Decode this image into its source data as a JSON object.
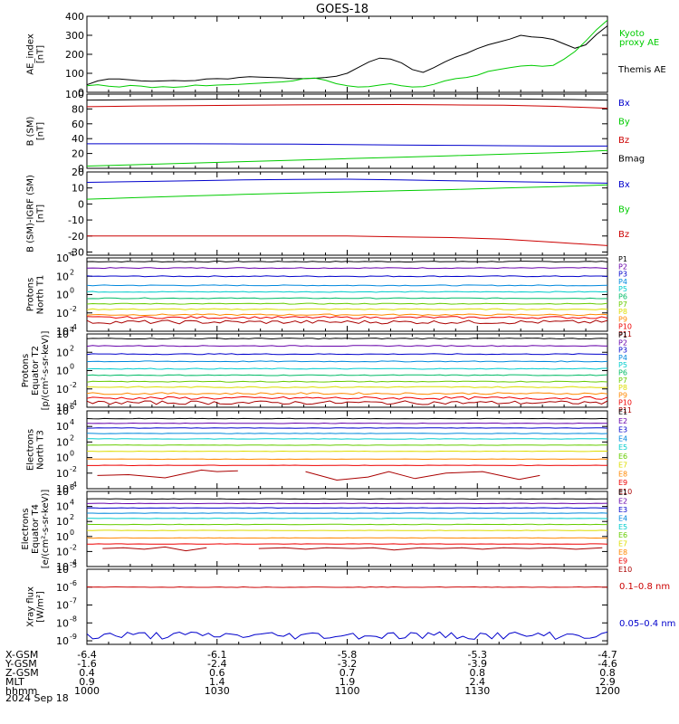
{
  "title": "GOES-18",
  "date_label": "2024 Sep 18",
  "ephemeris": {
    "rows": [
      {
        "label": "X-GSM",
        "values": [
          "-6.4",
          "-6.1",
          "-5.8",
          "-5.3",
          "-4.7"
        ]
      },
      {
        "label": "Y-GSM",
        "values": [
          "-1.6",
          "-2.4",
          "-3.2",
          "-3.9",
          "-4.6"
        ]
      },
      {
        "label": "Z-GSM",
        "values": [
          "0.4",
          "0.6",
          "0.7",
          "0.8",
          "0.8"
        ]
      },
      {
        "label": "MLT",
        "values": [
          "0.9",
          "1.4",
          "1.9",
          "2.4",
          "2.9"
        ]
      },
      {
        "label": "hhmm",
        "values": [
          "1000",
          "1030",
          "1100",
          "1130",
          "1200"
        ]
      }
    ]
  },
  "chart_data": [
    {
      "type": "line",
      "ylabel_lines": [
        "AE_index",
        "[nT]"
      ],
      "ylim": [
        0,
        400
      ],
      "yticks": [
        "0",
        "100",
        "200",
        "300",
        "400"
      ],
      "legend": [
        {
          "text": "Kyoto",
          "color": "#00cc00"
        },
        {
          "text": "proxy AE",
          "color": "#00cc00"
        },
        {
          "text": "Themis AE",
          "color": "#000000"
        }
      ],
      "series": [
        {
          "color": "#000000",
          "values": [
            40,
            60,
            70,
            70,
            65,
            60,
            58,
            60,
            62,
            60,
            62,
            70,
            72,
            70,
            78,
            82,
            80,
            78,
            76,
            72,
            72,
            74,
            78,
            85,
            100,
            130,
            160,
            180,
            175,
            155,
            120,
            105,
            130,
            160,
            185,
            205,
            230,
            250,
            265,
            280,
            300,
            292,
            288,
            278,
            255,
            232,
            250,
            305,
            350
          ]
        },
        {
          "color": "#00cc00",
          "values": [
            35,
            40,
            32,
            28,
            36,
            33,
            25,
            30,
            26,
            30,
            38,
            35,
            38,
            40,
            42,
            45,
            48,
            52,
            55,
            60,
            72,
            75,
            64,
            45,
            35,
            28,
            30,
            38,
            45,
            35,
            28,
            30,
            42,
            60,
            72,
            78,
            90,
            110,
            120,
            130,
            138,
            142,
            137,
            142,
            175,
            215,
            270,
            330,
            380
          ]
        }
      ]
    },
    {
      "type": "line",
      "ylabel_lines": [
        "B (SM)",
        "[nT]"
      ],
      "ylim": [
        0,
        100
      ],
      "yticks": [
        "0",
        "20",
        "40",
        "60",
        "80",
        "100"
      ],
      "legend": [
        {
          "text": "Bx",
          "color": "#0000cc"
        },
        {
          "text": "By",
          "color": "#00cc00"
        },
        {
          "text": "Bz",
          "color": "#cc0000"
        },
        {
          "text": "Bmag",
          "color": "#000000"
        }
      ],
      "series": [
        {
          "color": "#000000",
          "values": [
            92,
            92.5,
            93,
            93.3,
            93.5,
            93.7,
            94,
            94,
            93.5,
            93,
            92
          ]
        },
        {
          "color": "#cc0000",
          "values": [
            83,
            84,
            84.5,
            85,
            85.5,
            85.8,
            86,
            85.5,
            85,
            83.5,
            81
          ]
        },
        {
          "color": "#0000cc",
          "values": [
            33,
            33,
            33,
            32.8,
            32.5,
            32,
            31.5,
            31,
            30.5,
            30,
            30
          ]
        },
        {
          "color": "#00cc00",
          "values": [
            3,
            5,
            7,
            9,
            11,
            13,
            15,
            17,
            19,
            21,
            24
          ]
        }
      ]
    },
    {
      "type": "line",
      "ylabel_lines": [
        "B (SM)-IGRF (SM)",
        "[nT]"
      ],
      "ylim": [
        -32,
        20
      ],
      "yticks": [
        "-30",
        "-20",
        "-10",
        "0",
        "10",
        "20"
      ],
      "yticks_values": [
        -30,
        -20,
        -10,
        0,
        10,
        20
      ],
      "legend": [
        {
          "text": "Bx",
          "color": "#0000cc"
        },
        {
          "text": "By",
          "color": "#00cc00"
        },
        {
          "text": "Bz",
          "color": "#cc0000"
        }
      ],
      "series": [
        {
          "color": "#0000cc",
          "values": [
            13.5,
            14,
            14.5,
            15,
            15.3,
            15.5,
            15,
            14.5,
            14,
            13.5,
            13
          ]
        },
        {
          "color": "#00cc00",
          "values": [
            3,
            4,
            5,
            6,
            6.8,
            7.5,
            8.3,
            9,
            10,
            10.8,
            12
          ]
        },
        {
          "color": "#cc0000",
          "values": [
            -20,
            -20,
            -20,
            -20,
            -20,
            -20,
            -20.5,
            -21,
            -22,
            -24,
            -26
          ]
        }
      ]
    },
    {
      "type": "line",
      "log_scale": true,
      "ylabel_lines": [
        "Protons",
        "North T1"
      ],
      "ylim_exp": [
        -4,
        4
      ],
      "yticks_exp": [
        -4,
        -2,
        0,
        2,
        4
      ],
      "legend": [
        {
          "text": "P1",
          "color": "#000000"
        },
        {
          "text": "P2",
          "color": "#6600aa"
        },
        {
          "text": "P3",
          "color": "#0000cc"
        },
        {
          "text": "P4",
          "color": "#0088dd"
        },
        {
          "text": "P5",
          "color": "#00cccc"
        },
        {
          "text": "P6",
          "color": "#00bb66"
        },
        {
          "text": "P7",
          "color": "#66cc00"
        },
        {
          "text": "P8",
          "color": "#dddd00"
        },
        {
          "text": "P9",
          "color": "#ff8800"
        },
        {
          "text": "P10",
          "color": "#ee0000"
        },
        {
          "text": "P11",
          "color": "#aa0000"
        }
      ],
      "series": [
        {
          "color": "#000000",
          "level": 3.6,
          "noise": 0.05
        },
        {
          "color": "#6600aa",
          "level": 2.9,
          "noise": 0.05
        },
        {
          "color": "#0000cc",
          "level": 2.0,
          "noise": 0.05
        },
        {
          "color": "#0088dd",
          "level": 1.0,
          "noise": 0.05
        },
        {
          "color": "#00cccc",
          "level": 0.3,
          "noise": 0.05
        },
        {
          "color": "#00bb66",
          "level": -0.4,
          "noise": 0.05
        },
        {
          "color": "#66cc00",
          "level": -1.0,
          "noise": 0.05
        },
        {
          "color": "#dddd00",
          "level": -1.6,
          "noise": 0.06
        },
        {
          "color": "#ff8800",
          "level": -2.2,
          "noise": 0.08
        },
        {
          "color": "#ee0000",
          "level": -2.5,
          "noise": 0.12
        },
        {
          "color": "#aa0000",
          "level": -3.0,
          "noise": 0.2
        }
      ]
    },
    {
      "type": "line",
      "log_scale": true,
      "ylabel_lines": [
        "Protons",
        "Equator T2",
        "[p/(cm²-s-sr-keV)]"
      ],
      "ylim_exp": [
        -4,
        4
      ],
      "yticks_exp": [
        -4,
        -2,
        0,
        2,
        4
      ],
      "legend": [
        {
          "text": "P1",
          "color": "#000000"
        },
        {
          "text": "P2",
          "color": "#6600aa"
        },
        {
          "text": "P3",
          "color": "#0000cc"
        },
        {
          "text": "P4",
          "color": "#0088dd"
        },
        {
          "text": "P5",
          "color": "#00cccc"
        },
        {
          "text": "P6",
          "color": "#00bb66"
        },
        {
          "text": "P7",
          "color": "#66cc00"
        },
        {
          "text": "P8",
          "color": "#dddd00"
        },
        {
          "text": "P9",
          "color": "#ff8800"
        },
        {
          "text": "P10",
          "color": "#ee0000"
        },
        {
          "text": "P11",
          "color": "#aa0000"
        }
      ],
      "series": [
        {
          "color": "#000000",
          "level": 3.5,
          "noise": 0.05
        },
        {
          "color": "#6600aa",
          "level": 2.7,
          "noise": 0.05
        },
        {
          "color": "#0000cc",
          "level": 1.8,
          "noise": 0.05
        },
        {
          "color": "#0088dd",
          "level": 1.0,
          "noise": 0.05
        },
        {
          "color": "#00cccc",
          "level": 0.2,
          "noise": 0.05
        },
        {
          "color": "#00bb66",
          "level": -0.5,
          "noise": 0.05
        },
        {
          "color": "#66cc00",
          "level": -1.2,
          "noise": 0.05
        },
        {
          "color": "#dddd00",
          "level": -1.8,
          "noise": 0.07
        },
        {
          "color": "#ff8800",
          "level": -2.5,
          "noise": 0.1
        },
        {
          "color": "#ee0000",
          "level": -3.0,
          "noise": 0.15
        },
        {
          "color": "#aa0000",
          "level": -3.5,
          "noise": 0.2
        }
      ]
    },
    {
      "type": "line",
      "log_scale": true,
      "ylabel_lines": [
        "Electrons",
        "North T3"
      ],
      "ylim_exp": [
        -4,
        6
      ],
      "yticks_exp": [
        -4,
        -2,
        0,
        2,
        4,
        6
      ],
      "legend": [
        {
          "text": "E1",
          "color": "#000000"
        },
        {
          "text": "E2",
          "color": "#6600aa"
        },
        {
          "text": "E3",
          "color": "#0000cc"
        },
        {
          "text": "E4",
          "color": "#0088dd"
        },
        {
          "text": "E5",
          "color": "#00cccc"
        },
        {
          "text": "E6",
          "color": "#66cc00"
        },
        {
          "text": "E7",
          "color": "#dddd00"
        },
        {
          "text": "E8",
          "color": "#ff8800"
        },
        {
          "text": "E9",
          "color": "#ee0000"
        },
        {
          "text": "E10",
          "color": "#aa0000"
        }
      ],
      "series": [
        {
          "color": "#000000",
          "level": 5.0,
          "noise": 0.03
        },
        {
          "color": "#6600aa",
          "level": 4.4,
          "noise": 0.03
        },
        {
          "color": "#0000cc",
          "level": 3.8,
          "noise": 0.03
        },
        {
          "color": "#0088dd",
          "level": 3.1,
          "noise": 0.03
        },
        {
          "color": "#00cccc",
          "level": 2.4,
          "noise": 0.03
        },
        {
          "color": "#66cc00",
          "level": 1.6,
          "noise": 0.03
        },
        {
          "color": "#dddd00",
          "level": 0.8,
          "noise": 0.03
        },
        {
          "color": "#ff8800",
          "level": -0.2,
          "noise": 0.03
        },
        {
          "color": "#ee0000",
          "level": -1.0,
          "noise": 0.03
        },
        {
          "color": "#aa0000",
          "points": [
            [
              0.02,
              -2.3
            ],
            [
              0.08,
              -2.2
            ],
            [
              0.15,
              -2.6
            ],
            [
              0.22,
              -1.6
            ],
            [
              0.25,
              -1.8
            ],
            [
              0.29,
              -1.7
            ],
            null,
            [
              0.42,
              -1.8
            ],
            [
              0.48,
              -2.9
            ],
            [
              0.54,
              -2.5
            ],
            [
              0.58,
              -1.8
            ],
            [
              0.63,
              -2.7
            ],
            [
              0.69,
              -2.0
            ],
            [
              0.76,
              -1.8
            ],
            [
              0.83,
              -2.8
            ],
            [
              0.87,
              -2.3
            ]
          ]
        }
      ]
    },
    {
      "type": "line",
      "log_scale": true,
      "ylabel_lines": [
        "Electrons",
        "Equator T4",
        "[e/(cm²-s-sr-keV)]"
      ],
      "ylim_exp": [
        -4,
        6
      ],
      "yticks_exp": [
        -4,
        -2,
        0,
        2,
        4,
        6
      ],
      "legend": [
        {
          "text": "E1",
          "color": "#000000"
        },
        {
          "text": "E2",
          "color": "#6600aa"
        },
        {
          "text": "E3",
          "color": "#0000cc"
        },
        {
          "text": "E4",
          "color": "#0088dd"
        },
        {
          "text": "E5",
          "color": "#00cccc"
        },
        {
          "text": "E6",
          "color": "#66cc00"
        },
        {
          "text": "E7",
          "color": "#dddd00"
        },
        {
          "text": "E8",
          "color": "#ff8800"
        },
        {
          "text": "E9",
          "color": "#ee0000"
        },
        {
          "text": "E10",
          "color": "#aa0000"
        }
      ],
      "series": [
        {
          "color": "#000000",
          "level": 5.0,
          "noise": 0.03
        },
        {
          "color": "#6600aa",
          "level": 4.4,
          "noise": 0.03
        },
        {
          "color": "#0000cc",
          "level": 3.8,
          "noise": 0.03
        },
        {
          "color": "#0088dd",
          "level": 3.1,
          "noise": 0.03
        },
        {
          "color": "#00cccc",
          "level": 2.4,
          "noise": 0.03
        },
        {
          "color": "#66cc00",
          "level": 1.6,
          "noise": 0.03
        },
        {
          "color": "#dddd00",
          "level": 0.8,
          "noise": 0.03
        },
        {
          "color": "#ff8800",
          "level": -0.2,
          "noise": 0.03
        },
        {
          "color": "#ee0000",
          "level": -1.0,
          "noise": 0.03
        },
        {
          "color": "#aa0000",
          "points": [
            [
              0.03,
              -1.6
            ],
            [
              0.07,
              -1.5
            ],
            [
              0.11,
              -1.7
            ],
            [
              0.15,
              -1.4
            ],
            [
              0.19,
              -1.9
            ],
            [
              0.23,
              -1.5
            ],
            null,
            [
              0.33,
              -1.6
            ],
            [
              0.38,
              -1.5
            ],
            [
              0.42,
              -1.7
            ],
            [
              0.46,
              -1.5
            ],
            [
              0.51,
              -1.6
            ],
            [
              0.55,
              -1.5
            ],
            [
              0.59,
              -1.8
            ],
            [
              0.64,
              -1.5
            ],
            [
              0.68,
              -1.6
            ],
            [
              0.72,
              -1.5
            ],
            [
              0.76,
              -1.7
            ],
            [
              0.8,
              -1.5
            ],
            [
              0.85,
              -1.6
            ],
            [
              0.89,
              -1.5
            ],
            [
              0.94,
              -1.7
            ],
            [
              0.99,
              -1.5
            ]
          ]
        }
      ]
    },
    {
      "type": "line",
      "log_scale": true,
      "ylabel_lines": [
        "Xray flux",
        "[W/m²]"
      ],
      "ylim_exp": [
        -9.2,
        -5
      ],
      "yticks_exp": [
        -9,
        -8,
        -7,
        -6,
        -5
      ],
      "legend": [
        {
          "text": "0.1–0.8 nm",
          "color": "#cc0000"
        },
        {
          "text": "0.05–0.4 nm",
          "color": "#0000cc"
        }
      ],
      "series": [
        {
          "color": "#cc0000",
          "level": -6.0,
          "noise": 0.015
        },
        {
          "color": "#0000cc",
          "level": -8.7,
          "noise": 0.22
        }
      ]
    }
  ]
}
